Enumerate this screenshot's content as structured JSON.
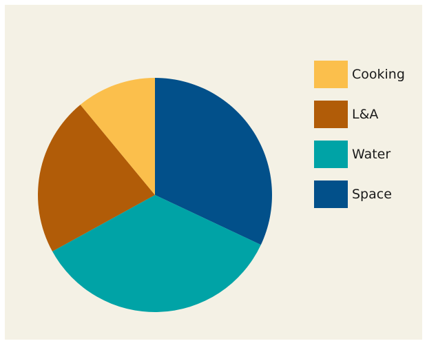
{
  "chart_data": {
    "type": "pie",
    "title": "",
    "categories": [
      "Space",
      "Water",
      "L&A",
      "Cooking"
    ],
    "values": [
      32,
      35,
      22,
      11
    ],
    "colors": [
      "#02508a",
      "#00a3a6",
      "#b15c08",
      "#fbbf4c"
    ],
    "legend_position": "right",
    "legend": [
      {
        "label": "Cooking",
        "color": "#fbbf4c"
      },
      {
        "label": "L&A",
        "color": "#b15c08"
      },
      {
        "label": "Water",
        "color": "#00a3a6"
      },
      {
        "label": "Space",
        "color": "#02508a"
      }
    ]
  }
}
